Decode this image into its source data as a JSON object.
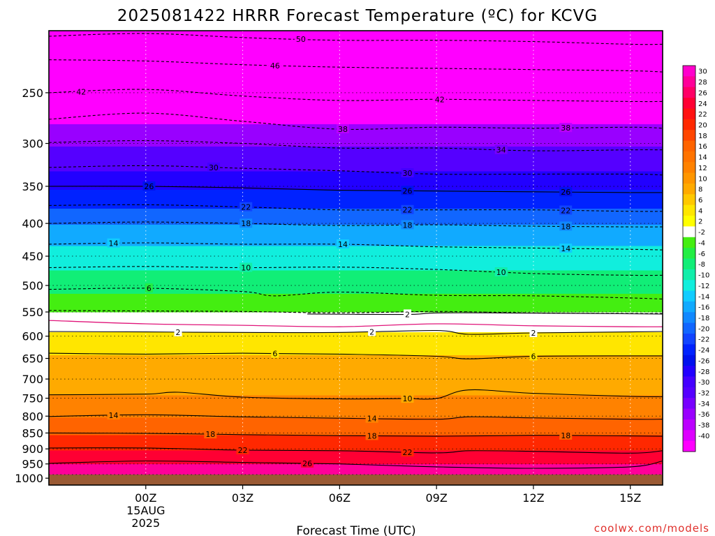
{
  "chart_data": {
    "type": "heatmap",
    "title": "2025081422 HRRR Forecast Temperature (ºC) for KCVG",
    "xlabel": "Forecast Time (UTC)",
    "ylabel": "",
    "credit": "coolwx.com/models",
    "x_hours_from_00z": [
      -3,
      16
    ],
    "x_ticks": [
      {
        "hour": 0,
        "label": "00Z",
        "label2": "15AUG",
        "label3": "2025"
      },
      {
        "hour": 3,
        "label": "03Z"
      },
      {
        "hour": 6,
        "label": "06Z"
      },
      {
        "hour": 9,
        "label": "09Z"
      },
      {
        "hour": 12,
        "label": "12Z"
      },
      {
        "hour": 15,
        "label": "15Z"
      }
    ],
    "y_axis": "pressure (hPa), log scale",
    "ylim": [
      1025,
      200
    ],
    "y_ticks": [
      250,
      300,
      350,
      400,
      450,
      500,
      550,
      600,
      650,
      700,
      750,
      800,
      850,
      900,
      950,
      1000
    ],
    "ground_level_hpa": 987,
    "colorbar": {
      "labels": [
        "30",
        "28",
        "26",
        "24",
        "22",
        "20",
        "18",
        "16",
        "14",
        "12",
        "10",
        "8",
        "6",
        "4",
        "2",
        "-2",
        "-4",
        "-6",
        "-8",
        "-10",
        "-12",
        "-14",
        "-16",
        "-18",
        "-20",
        "-22",
        "-24",
        "-26",
        "-28",
        "-30",
        "-32",
        "-34",
        "-36",
        "-38",
        "-40"
      ],
      "colors": [
        "#ff00cc",
        "#ff0099",
        "#ff0066",
        "#ff0033",
        "#ff1111",
        "#ff2800",
        "#ff4600",
        "#ff6400",
        "#ff7300",
        "#ff8200",
        "#ff9600",
        "#ffaa00",
        "#ffc800",
        "#ffe600",
        "#ffff00",
        "#ffffff",
        "#44ee11",
        "#22ee44",
        "#11ee77",
        "#11eeaa",
        "#11eedd",
        "#11ccff",
        "#11aaff",
        "#1188ff",
        "#1166ff",
        "#1144ff",
        "#0022ff",
        "#0011ee",
        "#2200ff",
        "#4400ff",
        "#5500ff",
        "#7700ff",
        "#9900ff",
        "#bb00ff",
        "#dd00ff",
        "#ff00ff"
      ]
    },
    "series": [
      {
        "temp": -50,
        "style": "dashed",
        "points": [
          [
            -3,
            204
          ],
          [
            0,
            202
          ],
          [
            3,
            205
          ],
          [
            6,
            207
          ],
          [
            9,
            207
          ],
          [
            12,
            208
          ],
          [
            15,
            210
          ],
          [
            16,
            210
          ]
        ],
        "label_at": [
          4.8
        ]
      },
      {
        "temp": -46,
        "style": "dashed",
        "points": [
          [
            -3,
            222
          ],
          [
            0,
            223
          ],
          [
            3,
            226
          ],
          [
            6,
            228
          ],
          [
            9,
            229
          ],
          [
            12,
            230
          ],
          [
            15,
            231
          ],
          [
            16,
            232
          ]
        ],
        "label_at": [
          4.0
        ]
      },
      {
        "temp": -42,
        "style": "dashed",
        "points": [
          [
            -3,
            250
          ],
          [
            0,
            247
          ],
          [
            3,
            253
          ],
          [
            6,
            257
          ],
          [
            9,
            256
          ],
          [
            12,
            257
          ],
          [
            15,
            258
          ],
          [
            16,
            258
          ]
        ],
        "label_at": [
          -2.0,
          9.1
        ]
      },
      {
        "temp": -38,
        "style": "dashed",
        "points": [
          [
            -3,
            275
          ],
          [
            0,
            269
          ],
          [
            3,
            277
          ],
          [
            6,
            285
          ],
          [
            9,
            283
          ],
          [
            12,
            284
          ],
          [
            15,
            283
          ],
          [
            16,
            284
          ]
        ],
        "label_at": [
          6.1,
          13.0
        ]
      },
      {
        "temp": -34,
        "style": "dashed",
        "points": [
          [
            -3,
            299
          ],
          [
            0,
            297
          ],
          [
            3,
            300
          ],
          [
            6,
            305
          ],
          [
            9,
            305
          ],
          [
            12,
            308
          ],
          [
            15,
            307
          ],
          [
            16,
            307
          ]
        ],
        "label_at": [
          11.0
        ]
      },
      {
        "temp": -30,
        "style": "dashed",
        "points": [
          [
            -3,
            327
          ],
          [
            0,
            325
          ],
          [
            3,
            328
          ],
          [
            6,
            331
          ],
          [
            9,
            335
          ],
          [
            12,
            335
          ],
          [
            15,
            335
          ],
          [
            16,
            336
          ]
        ],
        "label_at": [
          2.1,
          8.1
        ]
      },
      {
        "temp": -26,
        "style": "solid",
        "points": [
          [
            -3,
            350
          ],
          [
            0,
            350
          ],
          [
            3,
            352
          ],
          [
            6,
            355
          ],
          [
            9,
            356
          ],
          [
            12,
            357
          ],
          [
            15,
            358
          ],
          [
            16,
            358
          ]
        ],
        "label_at": [
          0.1,
          8.1,
          13.0
        ]
      },
      {
        "temp": -22,
        "style": "dashed",
        "points": [
          [
            -3,
            375
          ],
          [
            0,
            374
          ],
          [
            3,
            377
          ],
          [
            6,
            381
          ],
          [
            9,
            381
          ],
          [
            12,
            381
          ],
          [
            15,
            383
          ],
          [
            16,
            383
          ]
        ],
        "label_at": [
          3.1,
          8.1,
          13.0
        ]
      },
      {
        "temp": -18,
        "style": "dashed",
        "points": [
          [
            -3,
            400
          ],
          [
            0,
            398
          ],
          [
            3,
            400
          ],
          [
            6,
            403
          ],
          [
            9,
            402
          ],
          [
            12,
            404
          ],
          [
            15,
            405
          ],
          [
            16,
            405
          ]
        ],
        "label_at": [
          3.1,
          8.1,
          13.0
        ]
      },
      {
        "temp": -14,
        "style": "dashed",
        "points": [
          [
            -3,
            431
          ],
          [
            0,
            429
          ],
          [
            3,
            431
          ],
          [
            6,
            431
          ],
          [
            9,
            435
          ],
          [
            12,
            437
          ],
          [
            15,
            439
          ],
          [
            16,
            440
          ]
        ],
        "label_at": [
          -1.0,
          6.1,
          13.0
        ]
      },
      {
        "temp": -10,
        "style": "dashed",
        "points": [
          [
            -3,
            469
          ],
          [
            0,
            467
          ],
          [
            3,
            469
          ],
          [
            6,
            468
          ],
          [
            9,
            472
          ],
          [
            12,
            479
          ],
          [
            15,
            482
          ],
          [
            16,
            482
          ]
        ],
        "label_at": [
          3.1,
          11.0
        ]
      },
      {
        "temp": -6,
        "style": "dashed",
        "points": [
          [
            -3,
            507
          ],
          [
            0,
            505
          ],
          [
            3,
            511
          ],
          [
            4,
            519
          ],
          [
            6,
            512
          ],
          [
            9,
            518
          ],
          [
            12,
            519
          ],
          [
            15,
            523
          ],
          [
            16,
            525
          ]
        ],
        "label_at": [
          0.1
        ]
      },
      {
        "temp": -2,
        "style": "dashed",
        "points": [
          [
            -3,
            547
          ],
          [
            0,
            548
          ],
          [
            3,
            549
          ],
          [
            6,
            552
          ],
          [
            9,
            549
          ],
          [
            12,
            552
          ],
          [
            15,
            553
          ],
          [
            16,
            553
          ]
        ],
        "label_at": []
      },
      {
        "temp": 0,
        "style": "magenta",
        "points": [
          [
            -3,
            567
          ],
          [
            0,
            574
          ],
          [
            3,
            577
          ],
          [
            6,
            580
          ],
          [
            9,
            574
          ],
          [
            12,
            578
          ],
          [
            15,
            580
          ],
          [
            16,
            580
          ]
        ],
        "label_at": []
      },
      {
        "temp": 2,
        "style": "solid",
        "points": [
          [
            -3,
            590
          ],
          [
            0,
            591
          ],
          [
            3,
            592
          ],
          [
            6,
            592
          ],
          [
            9,
            588
          ],
          [
            10,
            596
          ],
          [
            12,
            593
          ],
          [
            15,
            591
          ],
          [
            16,
            590
          ]
        ],
        "label_at": [
          1.0,
          7.0,
          12.0
        ]
      },
      {
        "temp": 2,
        "style": "solid",
        "points": [
          [
            5,
            554
          ],
          [
            8,
            555
          ],
          [
            9,
            552
          ],
          [
            11,
            552
          ],
          [
            16,
            554
          ]
        ],
        "label_at": [
          8.1
        ]
      },
      {
        "temp": 6,
        "style": "solid",
        "points": [
          [
            -3,
            638
          ],
          [
            0,
            640
          ],
          [
            3,
            638
          ],
          [
            6,
            640
          ],
          [
            9,
            645
          ],
          [
            10,
            651
          ],
          [
            12,
            645
          ],
          [
            15,
            644
          ],
          [
            16,
            644
          ]
        ],
        "label_at": [
          4.0,
          12.0
        ]
      },
      {
        "temp": 10,
        "style": "solid",
        "points": [
          [
            -3,
            741
          ],
          [
            0,
            739
          ],
          [
            1,
            734
          ],
          [
            3,
            747
          ],
          [
            6,
            752
          ],
          [
            8,
            751
          ],
          [
            9,
            751
          ],
          [
            10,
            728
          ],
          [
            12,
            737
          ],
          [
            15,
            745
          ],
          [
            16,
            746
          ]
        ],
        "label_at": [
          8.1
        ]
      },
      {
        "temp": 14,
        "style": "solid",
        "points": [
          [
            -3,
            801
          ],
          [
            0,
            796
          ],
          [
            3,
            802
          ],
          [
            6,
            806
          ],
          [
            9,
            809
          ],
          [
            10,
            802
          ],
          [
            12,
            805
          ],
          [
            15,
            809
          ],
          [
            16,
            809
          ]
        ],
        "label_at": [
          -1.0,
          7.0
        ]
      },
      {
        "temp": 18,
        "style": "solid",
        "points": [
          [
            -3,
            850
          ],
          [
            0,
            851
          ],
          [
            3,
            855
          ],
          [
            6,
            858
          ],
          [
            9,
            860
          ],
          [
            12,
            857
          ],
          [
            15,
            859
          ],
          [
            16,
            860
          ]
        ],
        "label_at": [
          2.0,
          7.0,
          13.0
        ]
      },
      {
        "temp": 22,
        "style": "solid",
        "points": [
          [
            -3,
            897
          ],
          [
            0,
            897
          ],
          [
            3,
            904
          ],
          [
            6,
            906
          ],
          [
            9,
            913
          ],
          [
            10,
            906
          ],
          [
            12,
            908
          ],
          [
            15,
            914
          ],
          [
            16,
            906
          ]
        ],
        "label_at": [
          3.0,
          8.1
        ]
      },
      {
        "temp": 26,
        "style": "solid",
        "points": [
          [
            -3,
            948
          ],
          [
            0,
            940
          ],
          [
            3,
            945
          ],
          [
            6,
            950
          ],
          [
            9,
            960
          ],
          [
            12,
            965
          ],
          [
            15,
            960
          ],
          [
            16,
            940
          ]
        ],
        "label_at": [
          5.0
        ]
      }
    ]
  }
}
